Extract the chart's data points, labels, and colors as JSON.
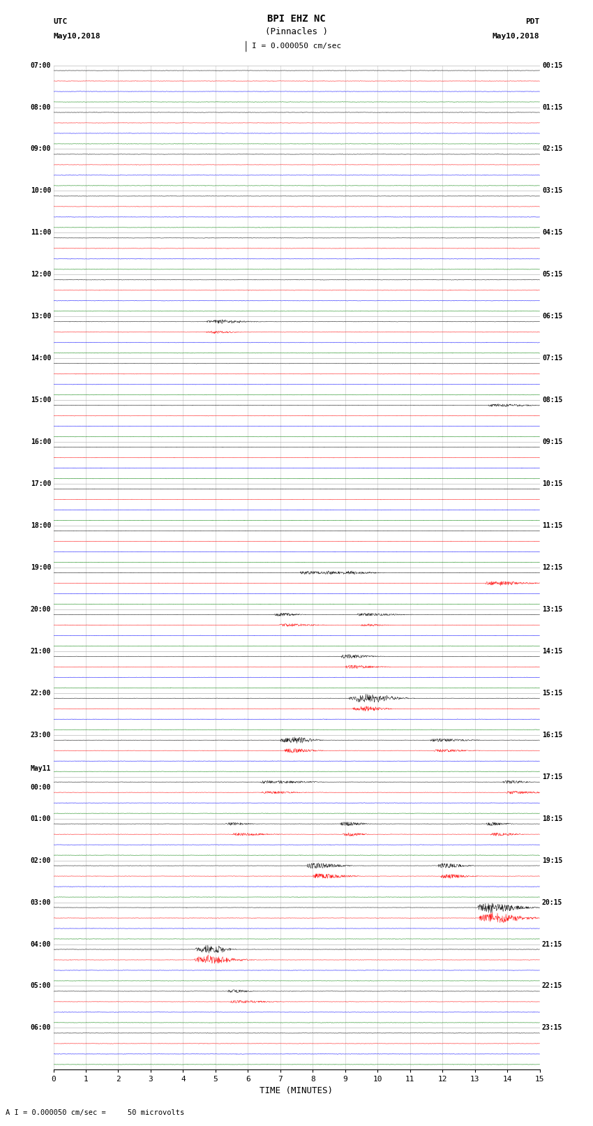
{
  "title_line1": "BPI EHZ NC",
  "title_line2": "(Pinnacles )",
  "scale_text": "I = 0.000050 cm/sec",
  "left_header_line1": "UTC",
  "left_header_line2": "May10,2018",
  "right_header_line1": "PDT",
  "right_header_line2": "May10,2018",
  "xlabel": "TIME (MINUTES)",
  "footnote": "A I = 0.000050 cm/sec =     50 microvolts",
  "x_min": 0,
  "x_max": 15,
  "x_ticks": [
    0,
    1,
    2,
    3,
    4,
    5,
    6,
    7,
    8,
    9,
    10,
    11,
    12,
    13,
    14,
    15
  ],
  "utc_labels": [
    "07:00",
    "",
    "",
    "",
    "08:00",
    "",
    "",
    "",
    "09:00",
    "",
    "",
    "",
    "10:00",
    "",
    "",
    "",
    "11:00",
    "",
    "",
    "",
    "12:00",
    "",
    "",
    "",
    "13:00",
    "",
    "",
    "",
    "14:00",
    "",
    "",
    "",
    "15:00",
    "",
    "",
    "",
    "16:00",
    "",
    "",
    "",
    "17:00",
    "",
    "",
    "",
    "18:00",
    "",
    "",
    "",
    "19:00",
    "",
    "",
    "",
    "20:00",
    "",
    "",
    "",
    "21:00",
    "",
    "",
    "",
    "22:00",
    "",
    "",
    "",
    "23:00",
    "",
    "",
    "",
    "May11",
    "00:00",
    "",
    "",
    "01:00",
    "",
    "",
    "",
    "02:00",
    "",
    "",
    "",
    "03:00",
    "",
    "",
    "",
    "04:00",
    "",
    "",
    "",
    "05:00",
    "",
    "",
    "",
    "06:00",
    "",
    "",
    ""
  ],
  "pdt_labels": [
    "00:15",
    "",
    "",
    "",
    "01:15",
    "",
    "",
    "",
    "02:15",
    "",
    "",
    "",
    "03:15",
    "",
    "",
    "",
    "04:15",
    "",
    "",
    "",
    "05:15",
    "",
    "",
    "",
    "06:15",
    "",
    "",
    "",
    "07:15",
    "",
    "",
    "",
    "08:15",
    "",
    "",
    "",
    "09:15",
    "",
    "",
    "",
    "10:15",
    "",
    "",
    "",
    "11:15",
    "",
    "",
    "",
    "12:15",
    "",
    "",
    "",
    "13:15",
    "",
    "",
    "",
    "14:15",
    "",
    "",
    "",
    "15:15",
    "",
    "",
    "",
    "16:15",
    "",
    "",
    "",
    "17:15",
    "",
    "",
    "",
    "18:15",
    "",
    "",
    "",
    "19:15",
    "",
    "",
    "",
    "20:15",
    "",
    "",
    "",
    "21:15",
    "",
    "",
    "",
    "22:15",
    "",
    "",
    "",
    "23:15",
    "",
    "",
    ""
  ],
  "trace_colors": [
    "black",
    "red",
    "blue",
    "green"
  ],
  "n_rows": 96,
  "background_color": "white",
  "grid_color": "#aaaaaa",
  "base_noise": 0.06,
  "event_rows": {
    "24": {
      "positions": [
        4.8,
        5.1,
        5.3
      ],
      "amps": [
        0.25,
        0.3,
        0.2
      ]
    },
    "25": {
      "positions": [
        4.8,
        5.0
      ],
      "amps": [
        0.2,
        0.25
      ]
    },
    "32": {
      "positions": [
        13.5,
        13.8
      ],
      "amps": [
        0.3,
        0.25
      ]
    },
    "48": {
      "positions": [
        7.8,
        8.5,
        9.2
      ],
      "amps": [
        0.4,
        0.35,
        0.3
      ]
    },
    "49": {
      "positions": [
        13.5,
        13.8
      ],
      "amps": [
        0.5,
        0.4
      ]
    },
    "52": {
      "positions": [
        7.0,
        9.5
      ],
      "amps": [
        0.4,
        0.35
      ]
    },
    "53": {
      "positions": [
        7.1,
        9.6
      ],
      "amps": [
        0.35,
        0.3
      ]
    },
    "56": {
      "positions": [
        9.0
      ],
      "amps": [
        0.5
      ]
    },
    "57": {
      "positions": [
        9.1
      ],
      "amps": [
        0.45
      ]
    },
    "60": {
      "positions": [
        9.3,
        9.5,
        9.7
      ],
      "amps": [
        0.5,
        0.7,
        0.4
      ]
    },
    "61": {
      "positions": [
        9.4,
        9.6
      ],
      "amps": [
        0.45,
        0.35
      ]
    },
    "64": {
      "positions": [
        7.2,
        7.5,
        11.8
      ],
      "amps": [
        0.6,
        0.5,
        0.4
      ]
    },
    "65": {
      "positions": [
        7.3,
        11.9
      ],
      "amps": [
        0.55,
        0.35
      ]
    },
    "68": {
      "positions": [
        6.5,
        7.0,
        14.0
      ],
      "amps": [
        0.35,
        0.3,
        0.4
      ]
    },
    "69": {
      "positions": [
        6.6,
        14.1
      ],
      "amps": [
        0.3,
        0.35
      ]
    },
    "72": {
      "positions": [
        5.5,
        9.0,
        13.5
      ],
      "amps": [
        0.4,
        0.5,
        0.45
      ]
    },
    "73": {
      "positions": [
        5.6,
        9.1,
        13.6
      ],
      "amps": [
        0.35,
        0.45,
        0.4
      ]
    },
    "76": {
      "positions": [
        8.0,
        12.0
      ],
      "amps": [
        0.7,
        0.6
      ]
    },
    "77": {
      "positions": [
        8.1,
        12.1
      ],
      "amps": [
        0.65,
        0.55
      ]
    },
    "80": {
      "positions": [
        13.2,
        13.5
      ],
      "amps": [
        1.0,
        0.8
      ]
    },
    "81": {
      "positions": [
        13.3,
        13.6
      ],
      "amps": [
        0.9,
        0.75
      ]
    },
    "84": {
      "positions": [
        4.5,
        4.7,
        4.9
      ],
      "amps": [
        0.5,
        0.8,
        0.6
      ]
    },
    "85": {
      "positions": [
        4.5,
        4.6,
        4.8
      ],
      "amps": [
        0.45,
        0.7,
        0.5
      ]
    },
    "88": {
      "positions": [
        5.5
      ],
      "amps": [
        0.4
      ]
    },
    "89": {
      "positions": [
        5.6
      ],
      "amps": [
        0.35
      ]
    }
  }
}
